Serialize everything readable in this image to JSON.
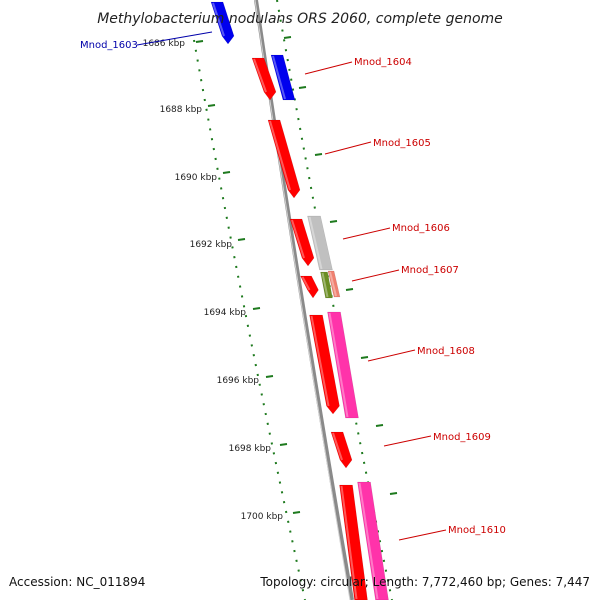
{
  "title": "Methylobacterium nodulans ORS 2060, complete genome",
  "footer": {
    "accession": "Accession: NC_011894",
    "summary": "Topology: circular; Length: 7,772,460 bp; Genes: 7,447"
  },
  "colors": {
    "backbone": "#8a8a8a",
    "tick": "#1e7a1e",
    "label_red": "#cc0000",
    "label_blue": "#0000aa",
    "red": "#ff0000",
    "blue": "#0000ee",
    "gray": "#c0c0c0",
    "pink": "#ff33aa",
    "olive": "#6b8e23",
    "salmon": "#f08070"
  },
  "ticks": [
    {
      "label": "1686 kbp"
    },
    {
      "label": "1688 kbp"
    },
    {
      "label": "1690 kbp"
    },
    {
      "label": "1692 kbp"
    },
    {
      "label": "1694 kbp"
    },
    {
      "label": "1696 kbp"
    },
    {
      "label": "1698 kbp"
    },
    {
      "label": "1700 kbp"
    }
  ],
  "gene_labels": [
    {
      "name": "Mnod_1603",
      "color": "blue"
    },
    {
      "name": "Mnod_1604",
      "color": "red"
    },
    {
      "name": "Mnod_1605",
      "color": "red"
    },
    {
      "name": "Mnod_1606",
      "color": "red"
    },
    {
      "name": "Mnod_1607",
      "color": "red"
    },
    {
      "name": "Mnod_1608",
      "color": "red"
    },
    {
      "name": "Mnod_1609",
      "color": "red"
    },
    {
      "name": "Mnod_1610",
      "color": "red"
    }
  ],
  "features": [
    {
      "color": "blue"
    },
    {
      "color": "red"
    },
    {
      "color": "blue"
    },
    {
      "color": "red"
    },
    {
      "color": "red"
    },
    {
      "color": "gray"
    },
    {
      "color": "red"
    },
    {
      "color": "olive"
    },
    {
      "color": "salmon"
    },
    {
      "color": "red"
    },
    {
      "color": "pink"
    },
    {
      "color": "red"
    },
    {
      "color": "red"
    },
    {
      "color": "pink"
    }
  ]
}
